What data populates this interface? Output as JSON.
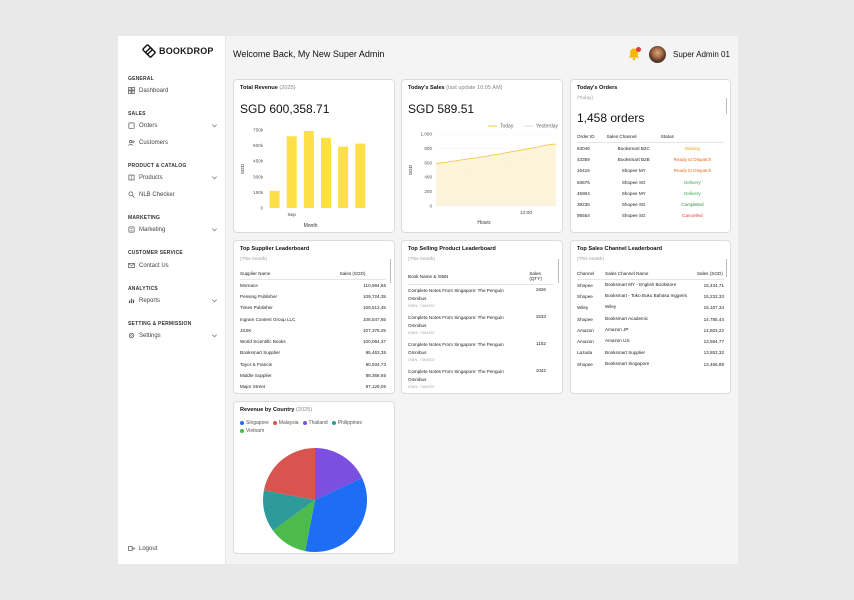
{
  "brand": {
    "name": "BOOKDROP"
  },
  "sidebar": {
    "sections": {
      "general": "GENERAL",
      "sales": "SALES",
      "catalog": "PRODUCT & CATALOG",
      "marketing": "MARKETING",
      "customer": "CUSTOMER SERVICE",
      "analytics": "ANALYTICS",
      "setting": "SETTING & PERMISSION"
    },
    "items": {
      "dashboard": "Dashboard",
      "orders": "Orders",
      "customers": "Customers",
      "products": "Products",
      "nlb": "NLB Checker",
      "marketing": "Marketing",
      "contact": "Contact Us",
      "reports": "Reports",
      "settings": "Settings",
      "logout": "Logout"
    }
  },
  "header": {
    "welcome": "Welcome Back, My New Super Admin",
    "user": "Super Admin 01"
  },
  "revenue": {
    "title": "Total Revenue",
    "year": "(2025)",
    "value": "SGD 600,358.71",
    "ylabel": "SGD",
    "xlabel": "Month",
    "xtick": "Sep",
    "yticks": [
      "750k",
      "600k",
      "450k",
      "300k",
      "150k",
      "0"
    ]
  },
  "sales": {
    "title": "Today's Sales",
    "update": "(last update 10:05 AM)",
    "value": "SGD 589.51",
    "legend_today": "Today",
    "legend_yesterday": "Yesterday",
    "ylabel": "SGD",
    "xlabel": "Hours",
    "xtick": "12:00",
    "yticks": [
      "1,000",
      "800",
      "600",
      "400",
      "200",
      "0"
    ]
  },
  "orders": {
    "title": "Today's Orders",
    "sub": "(Today)",
    "count": "1,458 orders",
    "cols": [
      "Order ID",
      "Sales Channel",
      "Status"
    ],
    "rows": [
      {
        "id": "63046",
        "channel": "Booksmart B2C",
        "status": "Waiting",
        "color": "#e8a31c"
      },
      {
        "id": "43359",
        "channel": "Booksmart B2B",
        "status": "Ready to Dispatch",
        "color": "#e56a1c"
      },
      {
        "id": "16415",
        "channel": "Shopee MY",
        "status": "Ready to Dispatch",
        "color": "#e56a1c"
      },
      {
        "id": "83676",
        "channel": "Shopee SG",
        "status": "Delivery",
        "color": "#3aa655"
      },
      {
        "id": "45904",
        "channel": "Shopee MY",
        "status": "Delivery",
        "color": "#3aa655"
      },
      {
        "id": "39235",
        "channel": "Shopee SG",
        "status": "Completed",
        "color": "#2e8b3e"
      },
      {
        "id": "95554",
        "channel": "Shopee SG",
        "status": "Cancelled",
        "color": "#e53935"
      }
    ]
  },
  "suppliers": {
    "title": "Top Supplier Leaderboard",
    "sub": "(This month)",
    "cols": [
      "Supplier Name",
      "Sales (SGD)"
    ],
    "rows": [
      {
        "name": "Mornace",
        "sales": "110,984,65"
      },
      {
        "name": "Pensing Publisher",
        "sales": "109,724,35"
      },
      {
        "name": "Times Publisher",
        "sales": "109,512,45"
      },
      {
        "name": "Ingram Content Group LLC",
        "sales": "108,547,65"
      },
      {
        "name": "JSSK",
        "sales": "107,375,25"
      },
      {
        "name": "World Scientific Books",
        "sales": "100,094,37"
      },
      {
        "name": "Booksmart Supplier",
        "sales": "95,463,35"
      },
      {
        "name": "Tayor & Francis",
        "sales": "90,934,73"
      },
      {
        "name": "Middle Supplier",
        "sales": "88,368,65"
      },
      {
        "name": "Major Street",
        "sales": "87,129,05"
      }
    ]
  },
  "products": {
    "title": "Top Selling Product Leaderboard",
    "sub": "(This month)",
    "cols": [
      "Book Name & ISBN",
      "Sales (QTY)"
    ],
    "rows": [
      {
        "name": "Complete Notes From Singapore: The Penguin Omnibus",
        "isbn": "ISBN: 7364537",
        "qty": "1826"
      },
      {
        "name": "Complete Notes From Singapore: The Penguin Omnibus",
        "isbn": "ISBN: 7364537",
        "qty": "1533"
      },
      {
        "name": "Complete Notes From Singapore: The Penguin Omnibus",
        "isbn": "ISBN: 7364537",
        "qty": "1152"
      },
      {
        "name": "Complete Notes From Singapore: The Penguin Omnibus",
        "isbn": "ISBN: 7364537",
        "qty": "1042"
      }
    ]
  },
  "channels": {
    "title": "Top Sales Channel Leaderboard",
    "sub": "(This month)",
    "cols": [
      "Channel",
      "Sales Channel Name",
      "Sales (SGD)"
    ],
    "rows": [
      {
        "ch": "Shopee",
        "name": "Booksmart MY - English Bookstore",
        "sales": "15,434,71"
      },
      {
        "ch": "Shopee",
        "name": "Booksmart - Toko Buku Bahasa Inggeris",
        "sales": "15,233,33"
      },
      {
        "ch": "Wiley",
        "name": "Wiley",
        "sales": "15,167,34"
      },
      {
        "ch": "Shopee",
        "name": "Booksmart Academic",
        "sales": "14,785,44"
      },
      {
        "ch": "Amazon",
        "name": "Amazon JP",
        "sales": "14,503,22"
      },
      {
        "ch": "Amazon",
        "name": "Amazon US",
        "sales": "13,584,77"
      },
      {
        "ch": "Lazada",
        "name": "Booksmart Supplier",
        "sales": "13,553,32"
      },
      {
        "ch": "Shopee",
        "name": "Booksmart Singapore",
        "sales": "13,456,89"
      }
    ]
  },
  "country": {
    "title": "Revenue by Country",
    "year": "(2025)"
  },
  "chart_data": [
    {
      "type": "bar",
      "categories": [
        "",
        "",
        "",
        "",
        "",
        "",
        ""
      ],
      "values": [
        165,
        690,
        740,
        675,
        590,
        620,
        0
      ],
      "ylim": [
        0,
        750
      ],
      "ylabel": "SGD",
      "xlabel": "Month",
      "unit": "k",
      "color": "#fde047"
    },
    {
      "type": "line",
      "x_range": [
        0,
        100
      ],
      "ylim": [
        0,
        1000
      ],
      "ylabel": "SGD",
      "xlabel": "Hours",
      "series": [
        {
          "name": "Today",
          "color": "#f5c84a",
          "values": [
            585,
            600,
            605,
            620,
            628,
            640,
            650,
            660,
            668,
            680,
            690,
            705,
            715,
            725,
            740,
            752,
            765,
            775,
            790,
            800,
            815,
            830,
            845,
            855,
            860
          ]
        },
        {
          "name": "Yesterday",
          "color": "#eeeeee",
          "values": [
            450,
            455,
            470,
            480,
            490,
            505,
            520,
            530,
            545,
            555,
            570,
            580,
            595,
            605,
            620,
            630,
            640,
            655,
            665,
            680,
            690,
            705,
            715,
            725,
            735
          ]
        }
      ]
    },
    {
      "type": "pie",
      "labels": [
        "Singapore",
        "Malaysia",
        "Thailand",
        "Philippines",
        "Vietnam"
      ],
      "values": [
        35,
        22,
        18,
        13,
        12
      ],
      "colors": [
        "#1e6ef5",
        "#d9534f",
        "#7b4fe0",
        "#2e9a9a",
        "#4cbb4c"
      ]
    }
  ]
}
